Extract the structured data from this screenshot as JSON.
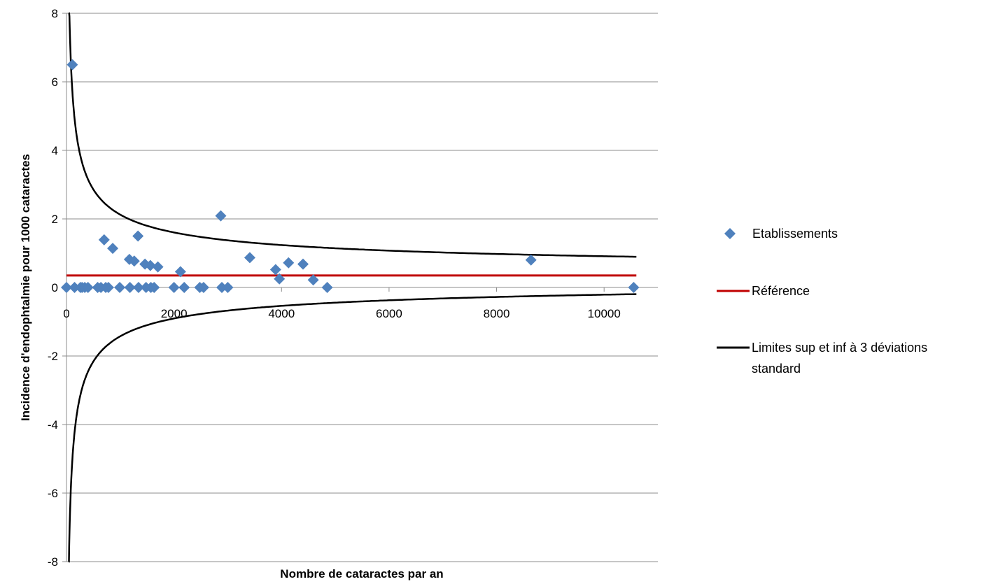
{
  "chart_data": {
    "type": "scatter",
    "xlabel": "Nombre de cataractes par an",
    "ylabel": "Incidence d'endophtalmie pour 1000 cataractes",
    "xlim": [
      0,
      11000
    ],
    "ylim": [
      -8,
      8
    ],
    "x_ticks": [
      "0",
      "2000",
      "4000",
      "6000",
      "8000",
      "10000"
    ],
    "x_tick_values": [
      0,
      2000,
      4000,
      6000,
      8000,
      10000
    ],
    "y_ticks": [
      "8",
      "6",
      "4",
      "2",
      "0",
      "-2",
      "-4",
      "-6",
      "-8"
    ],
    "y_tick_values": [
      8,
      6,
      4,
      2,
      0,
      -2,
      -4,
      -6,
      -8
    ],
    "grid": "horizontal",
    "legend_position": "right",
    "series": [
      {
        "name": "Etablissements",
        "type": "scatter",
        "color": "#4f81bd",
        "marker": "diamond",
        "points": [
          [
            0,
            0
          ],
          [
            110,
            6.5
          ],
          [
            150,
            0
          ],
          [
            260,
            0
          ],
          [
            290,
            0
          ],
          [
            340,
            0
          ],
          [
            400,
            0
          ],
          [
            580,
            0
          ],
          [
            640,
            0
          ],
          [
            700,
            1.39
          ],
          [
            730,
            0
          ],
          [
            780,
            0
          ],
          [
            860,
            1.14
          ],
          [
            990,
            0
          ],
          [
            1170,
            0.82
          ],
          [
            1180,
            0
          ],
          [
            1260,
            0.77
          ],
          [
            1330,
            1.5
          ],
          [
            1340,
            0
          ],
          [
            1460,
            0.68
          ],
          [
            1480,
            0
          ],
          [
            1560,
            0.64
          ],
          [
            1570,
            0
          ],
          [
            1630,
            0
          ],
          [
            1700,
            0.6
          ],
          [
            2000,
            0
          ],
          [
            2120,
            0.46
          ],
          [
            2190,
            0
          ],
          [
            2480,
            0
          ],
          [
            2550,
            0
          ],
          [
            2870,
            2.09
          ],
          [
            2890,
            0
          ],
          [
            3000,
            0
          ],
          [
            3410,
            0.87
          ],
          [
            3890,
            0.52
          ],
          [
            3960,
            0.25
          ],
          [
            4130,
            0.72
          ],
          [
            4400,
            0.68
          ],
          [
            4590,
            0.22
          ],
          [
            4850,
            0
          ],
          [
            8640,
            0.8
          ],
          [
            10550,
            0
          ]
        ]
      },
      {
        "name": "Référence",
        "type": "line",
        "color": "#c00000",
        "points": [
          [
            0,
            0.35
          ],
          [
            10600,
            0.35
          ]
        ]
      },
      {
        "name": "Limites sup et inf à 3 déviations standard",
        "type": "line",
        "color": "#000000",
        "reference_value": 0.35,
        "sd_multiplier": 3,
        "x_range": [
          40,
          10600
        ]
      }
    ]
  }
}
